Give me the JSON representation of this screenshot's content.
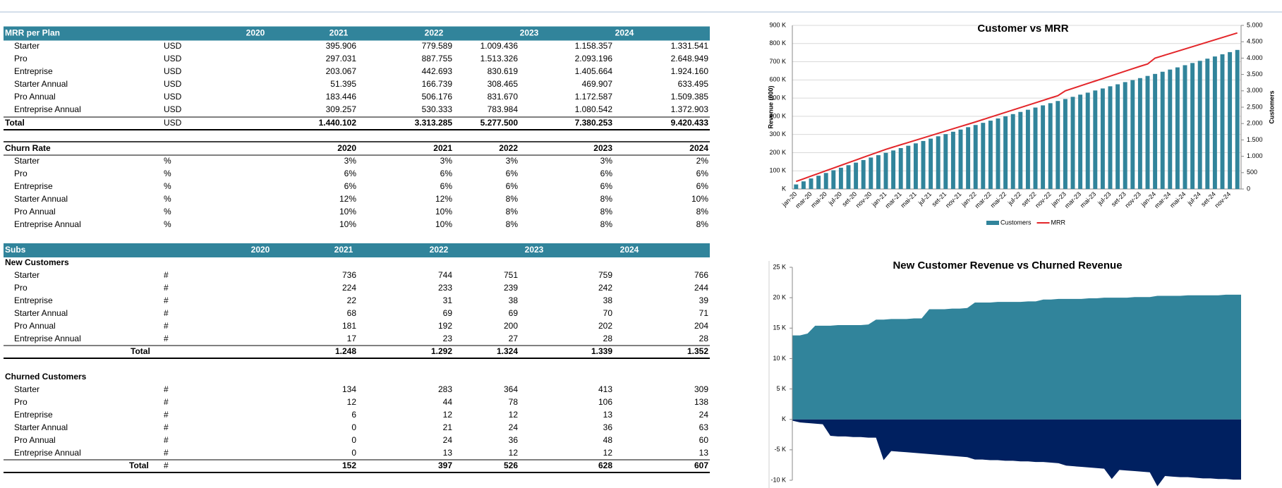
{
  "mrr_table": {
    "title": "MRR  per Plan",
    "years": [
      2020,
      2021,
      2022,
      2023,
      2024
    ],
    "rows": [
      {
        "name": "Starter",
        "unit": "USD",
        "values": [
          "395.906",
          "779.589",
          "1.009.436",
          "1.158.357",
          "1.331.541"
        ]
      },
      {
        "name": "Pro",
        "unit": "USD",
        "values": [
          "297.031",
          "887.755",
          "1.513.326",
          "2.093.196",
          "2.648.949"
        ]
      },
      {
        "name": "Entreprise",
        "unit": "USD",
        "values": [
          "203.067",
          "442.693",
          "830.619",
          "1.405.664",
          "1.924.160"
        ]
      },
      {
        "name": "Starter Annual",
        "unit": "USD",
        "values": [
          "51.395",
          "166.739",
          "308.465",
          "469.907",
          "633.495"
        ]
      },
      {
        "name": "Pro Annual",
        "unit": "USD",
        "values": [
          "183.446",
          "506.176",
          "831.670",
          "1.172.587",
          "1.509.385"
        ]
      },
      {
        "name": "Entreprise Annual",
        "unit": "USD",
        "values": [
          "309.257",
          "530.333",
          "783.984",
          "1.080.542",
          "1.372.903"
        ]
      }
    ],
    "total": {
      "name": "Total",
      "unit": "USD",
      "values": [
        "1.440.102",
        "3.313.285",
        "5.277.500",
        "7.380.253",
        "9.420.433"
      ]
    }
  },
  "churn_table": {
    "title": "Churn Rate",
    "years": [
      2020,
      2021,
      2022,
      2023,
      2024
    ],
    "rows": [
      {
        "name": "Starter",
        "unit": "%",
        "values": [
          "3%",
          "3%",
          "3%",
          "3%",
          "2%"
        ]
      },
      {
        "name": "Pro",
        "unit": "%",
        "values": [
          "6%",
          "6%",
          "6%",
          "6%",
          "6%"
        ]
      },
      {
        "name": "Entreprise",
        "unit": "%",
        "values": [
          "6%",
          "6%",
          "6%",
          "6%",
          "6%"
        ]
      },
      {
        "name": "Starter Annual",
        "unit": "%",
        "values": [
          "12%",
          "12%",
          "8%",
          "8%",
          "10%"
        ]
      },
      {
        "name": "Pro Annual",
        "unit": "%",
        "values": [
          "10%",
          "10%",
          "8%",
          "8%",
          "8%"
        ]
      },
      {
        "name": "Entreprise Annual",
        "unit": "%",
        "values": [
          "10%",
          "10%",
          "8%",
          "8%",
          "8%"
        ]
      }
    ]
  },
  "subs_table": {
    "title": "Subs",
    "years": [
      2020,
      2021,
      2022,
      2023,
      2024
    ],
    "new": {
      "title": "New Customers",
      "rows": [
        {
          "name": "Starter",
          "unit": "#",
          "values": [
            "736",
            "744",
            "751",
            "759",
            "766"
          ]
        },
        {
          "name": "Pro",
          "unit": "#",
          "values": [
            "224",
            "233",
            "239",
            "242",
            "244"
          ]
        },
        {
          "name": "Entreprise",
          "unit": "#",
          "values": [
            "22",
            "31",
            "38",
            "38",
            "39"
          ]
        },
        {
          "name": "Starter Annual",
          "unit": "#",
          "values": [
            "68",
            "69",
            "69",
            "70",
            "71"
          ]
        },
        {
          "name": "Pro Annual",
          "unit": "#",
          "values": [
            "181",
            "192",
            "200",
            "202",
            "204"
          ]
        },
        {
          "name": "Entreprise Annual",
          "unit": "#",
          "values": [
            "17",
            "23",
            "27",
            "28",
            "28"
          ]
        }
      ],
      "total": {
        "name": "Total",
        "values": [
          "1.248",
          "1.292",
          "1.324",
          "1.339",
          "1.352"
        ]
      }
    },
    "churned": {
      "title": "Churned Customers",
      "rows": [
        {
          "name": "Starter",
          "unit": "#",
          "values": [
            "134",
            "283",
            "364",
            "413",
            "309"
          ]
        },
        {
          "name": "Pro",
          "unit": "#",
          "values": [
            "12",
            "44",
            "78",
            "106",
            "138"
          ]
        },
        {
          "name": "Entreprise",
          "unit": "#",
          "values": [
            "6",
            "12",
            "12",
            "13",
            "24"
          ]
        },
        {
          "name": "Starter Annual",
          "unit": "#",
          "values": [
            "0",
            "21",
            "24",
            "36",
            "63"
          ]
        },
        {
          "name": "Pro Annual",
          "unit": "#",
          "values": [
            "0",
            "24",
            "36",
            "48",
            "60"
          ]
        },
        {
          "name": "Entreprise Annual",
          "unit": "#",
          "values": [
            "0",
            "13",
            "12",
            "12",
            "13"
          ]
        }
      ],
      "total": {
        "name": "Total",
        "unit": "#",
        "values": [
          "152",
          "397",
          "526",
          "628",
          "607"
        ]
      }
    }
  },
  "chart_data": [
    {
      "type": "bar",
      "title": "Customer vs MRR",
      "y_label": "Revenue (000)",
      "y2_label": "Customers",
      "categories": [
        "jan-20",
        null,
        "mar-20",
        null,
        "mai-20",
        null,
        "jul-20",
        null,
        "set-20",
        null,
        "nov-20",
        null,
        "jan-21",
        null,
        "mar-21",
        null,
        "mai-21",
        null,
        "jul-21",
        null,
        "set-21",
        null,
        "nov-21",
        null,
        "jan-22",
        null,
        "mar-22",
        null,
        "mai-22",
        null,
        "jul-22",
        null,
        "set-22",
        null,
        "nov-22",
        null,
        "jan-23",
        null,
        "mar-23",
        null,
        "mai-23",
        null,
        "jul-23",
        null,
        "set-23",
        null,
        "nov-23",
        null,
        "jan-24",
        null,
        "mar-24",
        null,
        "mai-24",
        null,
        "jul-24",
        null,
        "set-24",
        null,
        "nov-24",
        null
      ],
      "series": [
        {
          "name": "Customers",
          "type": "bar",
          "color": "#31849b",
          "values": [
            25000,
            42000,
            58000,
            73000,
            88000,
            103000,
            117000,
            131000,
            145000,
            159000,
            173000,
            186000,
            199000,
            212000,
            225000,
            238000,
            251000,
            264000,
            277000,
            290000,
            302000,
            315000,
            327000,
            340000,
            352000,
            364000,
            376000,
            388000,
            400000,
            412000,
            424000,
            436000,
            448000,
            460000,
            472000,
            484000,
            495000,
            507000,
            519000,
            530000,
            542000,
            553000,
            565000,
            576000,
            588000,
            599000,
            610000,
            622000,
            633000,
            645000,
            657000,
            669000,
            681000,
            693000,
            705000,
            717000,
            729000,
            741000,
            753000,
            765000
          ]
        },
        {
          "name": "MRR",
          "type": "line",
          "axis": "y2",
          "color": "#e3262a",
          "values": [
            230,
            312,
            394,
            476,
            558,
            640,
            722,
            804,
            886,
            968,
            1050,
            1130,
            1212,
            1282,
            1352,
            1422,
            1492,
            1562,
            1632,
            1702,
            1772,
            1842,
            1912,
            1980,
            2050,
            2123,
            2196,
            2269,
            2342,
            2415,
            2488,
            2561,
            2634,
            2707,
            2780,
            2850,
            3000,
            3075,
            3150,
            3225,
            3300,
            3375,
            3450,
            3525,
            3600,
            3675,
            3750,
            3820,
            4000,
            4070,
            4140,
            4210,
            4280,
            4350,
            4420,
            4490,
            4560,
            4630,
            4700,
            4770
          ]
        }
      ],
      "ylim": [
        0,
        900000
      ],
      "yticks": [
        {
          "value": 0,
          "label": "K"
        },
        {
          "value": 100000,
          "label": "100 K"
        },
        {
          "value": 200000,
          "label": "200 K"
        },
        {
          "value": 300000,
          "label": "300 K"
        },
        {
          "value": 400000,
          "label": "400 K"
        },
        {
          "value": 500000,
          "label": "500 K"
        },
        {
          "value": 600000,
          "label": "600 K"
        },
        {
          "value": 700000,
          "label": "700 K"
        },
        {
          "value": 800000,
          "label": "800 K"
        },
        {
          "value": 900000,
          "label": "900 K"
        }
      ],
      "y2lim": [
        0,
        5000
      ],
      "y2ticks": [
        0,
        500,
        {
          "value": 1000,
          "label": "1.000"
        },
        {
          "value": 1500,
          "label": "1.500"
        },
        {
          "value": 2000,
          "label": "2.000"
        },
        {
          "value": 2500,
          "label": "2.500"
        },
        {
          "value": 3000,
          "label": "3.000"
        },
        {
          "value": 3500,
          "label": "3.500"
        },
        {
          "value": 4000,
          "label": "4.000"
        },
        {
          "value": 4500,
          "label": "4.500"
        },
        {
          "value": 5000,
          "label": "5.000"
        }
      ],
      "grid": true,
      "legend": "bottom"
    },
    {
      "type": "area",
      "title": "New Customer Revenue vs Churned Revenue",
      "series": [
        {
          "name": "New Customer Revenue",
          "color": "#31849b",
          "values": [
            13800,
            13800,
            14100,
            15400,
            15400,
            15400,
            15500,
            15500,
            15500,
            15500,
            15600,
            16400,
            16400,
            16500,
            16500,
            16500,
            16600,
            16600,
            18100,
            18100,
            18100,
            18200,
            18200,
            18300,
            19200,
            19200,
            19200,
            19300,
            19300,
            19300,
            19300,
            19400,
            19400,
            19700,
            19700,
            19800,
            19800,
            19800,
            19800,
            19900,
            19900,
            20000,
            20000,
            20000,
            20000,
            20100,
            20100,
            20100,
            20300,
            20300,
            20300,
            20300,
            20400,
            20400,
            20400,
            20400,
            20400,
            20500,
            20500,
            20500
          ]
        },
        {
          "name": "Churned Revenue",
          "color": "#002060",
          "values": [
            -200,
            -500,
            -600,
            -700,
            -800,
            -2700,
            -2800,
            -2800,
            -2900,
            -2900,
            -3000,
            -3000,
            -6700,
            -5200,
            -5300,
            -5400,
            -5500,
            -5600,
            -5700,
            -5800,
            -5900,
            -6000,
            -6100,
            -6200,
            -6600,
            -6600,
            -6700,
            -6700,
            -6800,
            -6800,
            -6900,
            -6900,
            -7000,
            -7000,
            -7100,
            -7200,
            -7600,
            -7700,
            -7800,
            -7900,
            -8000,
            -8100,
            -9800,
            -8300,
            -8400,
            -8500,
            -8600,
            -8700,
            -11000,
            -9300,
            -9400,
            -9500,
            -9500,
            -9600,
            -9700,
            -9700,
            -9800,
            -9800,
            -9900,
            -9900
          ]
        }
      ],
      "ylim": [
        -10000,
        25000
      ],
      "yticks": [
        {
          "value": -10000,
          "label": "-10 K"
        },
        {
          "value": -5000,
          "label": "-5 K"
        },
        {
          "value": 0,
          "label": "K"
        },
        {
          "value": 5000,
          "label": "5 K"
        },
        {
          "value": 10000,
          "label": "10 K"
        },
        {
          "value": 15000,
          "label": "15 K"
        },
        {
          "value": 20000,
          "label": "20 K"
        },
        {
          "value": 25000,
          "label": "25 K"
        }
      ]
    }
  ]
}
